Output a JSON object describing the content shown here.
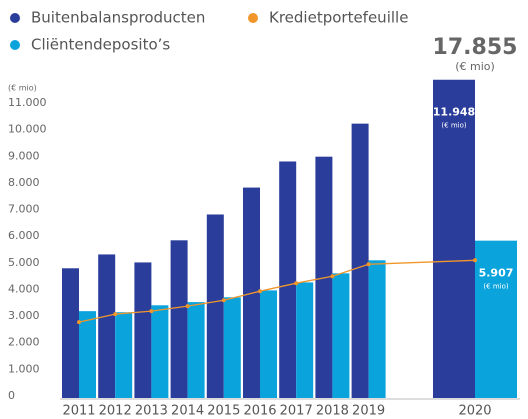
{
  "chart_data": {
    "type": "bar",
    "categories": [
      "2011",
      "2012",
      "2013",
      "2014",
      "2015",
      "2016",
      "2017",
      "2018",
      "2019",
      "2020"
    ],
    "series": [
      {
        "name": "Buitenbalansproducten",
        "color": "#2b3d9b",
        "values": [
          4870,
          5390,
          5090,
          5920,
          6890,
          7900,
          8880,
          9060,
          10300,
          11948
        ],
        "value_labels": [
          null,
          null,
          null,
          null,
          null,
          null,
          null,
          null,
          null,
          "11.948"
        ]
      },
      {
        "name": "Kredietportefeuille",
        "color": "#f0962a",
        "type": "line",
        "values": [
          2850,
          3150,
          3260,
          3450,
          3670,
          4010,
          4310,
          4570,
          5020,
          5170
        ]
      },
      {
        "name": "Cliëntendeposito’s",
        "color": "#0aa3dc",
        "values": [
          3260,
          3220,
          3480,
          3600,
          3780,
          4040,
          4340,
          4680,
          5170,
          5907
        ],
        "value_labels": [
          null,
          null,
          null,
          null,
          null,
          null,
          null,
          null,
          null,
          "5.907"
        ]
      }
    ],
    "unit": "(€ mio)",
    "total_label": "17.855",
    "ylim": [
      0,
      11000
    ],
    "yticks": [
      0,
      {
        "value": 1000,
        "label": "1.000"
      },
      {
        "value": 2000,
        "label": "2.000"
      },
      {
        "value": 3000,
        "label": "3.000"
      },
      {
        "value": 4000,
        "label": "4.000"
      },
      {
        "value": 5000,
        "label": "5.000"
      },
      {
        "value": 6000,
        "label": "6.000"
      },
      {
        "value": 7000,
        "label": "7.000"
      },
      {
        "value": 8000,
        "label": "8.000"
      },
      {
        "value": 9000,
        "label": "9.000"
      },
      {
        "value": 10000,
        "label": "10.000"
      },
      {
        "value": 11000,
        "label": "11.000"
      }
    ],
    "grid": false
  }
}
